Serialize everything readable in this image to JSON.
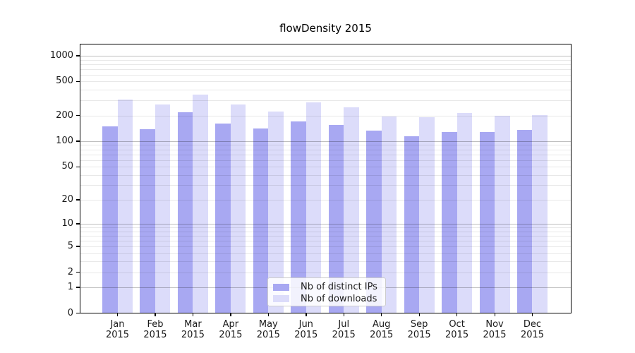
{
  "chart_data": {
    "type": "bar",
    "title": "flowDensity 2015",
    "categories": [
      "Jan 2015",
      "Feb 2015",
      "Mar 2015",
      "Apr 2015",
      "May 2015",
      "Jun 2015",
      "Jul 2015",
      "Aug 2015",
      "Sep 2015",
      "Oct 2015",
      "Nov 2015",
      "Dec 2015"
    ],
    "series": [
      {
        "name": "Nb of distinct IPs",
        "color": "#a8a8f2",
        "values": [
          150,
          139,
          217,
          160,
          142,
          172,
          155,
          133,
          114,
          128,
          128,
          135
        ]
      },
      {
        "name": "Nb of downloads",
        "color": "#dcdcfa",
        "values": [
          305,
          268,
          353,
          268,
          223,
          287,
          251,
          196,
          192,
          216,
          200,
          202
        ]
      }
    ],
    "yscale": "log1p",
    "yticks": [
      0,
      1,
      2,
      5,
      10,
      20,
      50,
      100,
      200,
      500,
      1000
    ],
    "ylim": [
      0,
      1380
    ],
    "xlabel": "",
    "ylabel": "",
    "grid": "on",
    "legend_position": "lower-center",
    "colors": {
      "minor_grid": "rgba(0,0,0,0.09)",
      "major_grid": "rgba(0,0,0,0.25)",
      "axis": "#000000",
      "text": "#1a1a1a",
      "background": "#ffffff"
    }
  }
}
